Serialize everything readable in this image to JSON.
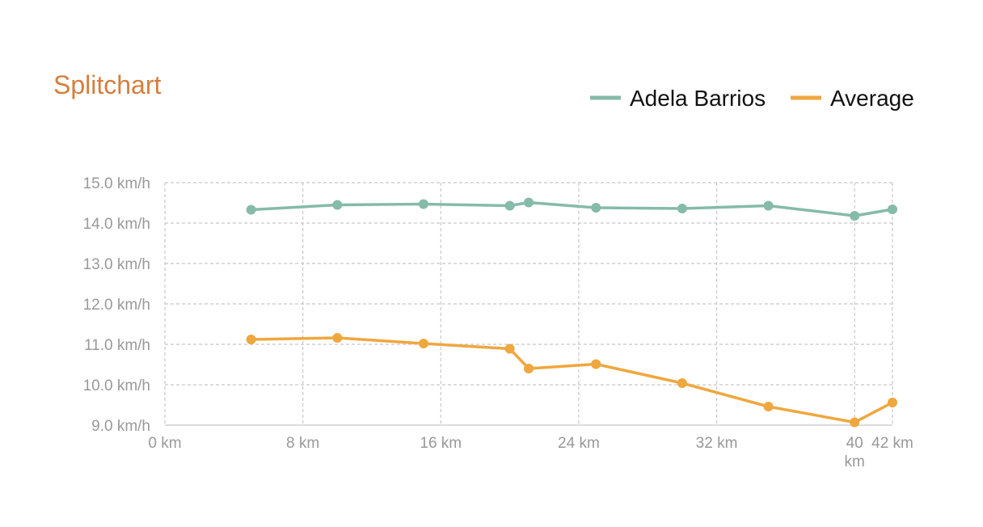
{
  "colors": {
    "title": "#d67d3e",
    "adela": "#85bba8",
    "average": "#efa73e",
    "grid": "#c8c8c8",
    "tick": "#999999"
  },
  "chart_data": {
    "type": "line",
    "title": "Splitchart",
    "xlabel": "",
    "ylabel": "",
    "xlim": [
      0,
      42.195
    ],
    "ylim": [
      9.0,
      15.0
    ],
    "grid": true,
    "legend_position": "top-right",
    "x_ticks": [
      {
        "value": 0,
        "lines": [
          "0 km"
        ]
      },
      {
        "value": 8,
        "lines": [
          "8 km"
        ]
      },
      {
        "value": 16,
        "lines": [
          "16 km"
        ]
      },
      {
        "value": 24,
        "lines": [
          "24 km"
        ]
      },
      {
        "value": 32,
        "lines": [
          "32 km"
        ]
      },
      {
        "value": 40,
        "lines": [
          "40",
          "km"
        ]
      },
      {
        "value": 42.195,
        "lines": [
          "42 km"
        ]
      }
    ],
    "y_ticks": [
      {
        "value": 9.0,
        "label": "9.0 km/h"
      },
      {
        "value": 10.0,
        "label": "10.0 km/h"
      },
      {
        "value": 11.0,
        "label": "11.0 km/h"
      },
      {
        "value": 12.0,
        "label": "12.0 km/h"
      },
      {
        "value": 13.0,
        "label": "13.0 km/h"
      },
      {
        "value": 14.0,
        "label": "14.0 km/h"
      },
      {
        "value": 15.0,
        "label": "15.0 km/h"
      }
    ],
    "x": [
      5,
      10,
      15,
      20,
      21.0975,
      25,
      30,
      35,
      40,
      42.195
    ],
    "series": [
      {
        "name": "Adela Barrios",
        "color": "#85bba8",
        "values": [
          14.33,
          14.45,
          14.47,
          14.43,
          14.51,
          14.38,
          14.36,
          14.43,
          14.18,
          14.34
        ]
      },
      {
        "name": "Average",
        "color": "#efa73e",
        "values": [
          11.12,
          11.16,
          11.02,
          10.89,
          10.4,
          10.51,
          10.04,
          9.46,
          9.07,
          9.56
        ]
      }
    ]
  }
}
